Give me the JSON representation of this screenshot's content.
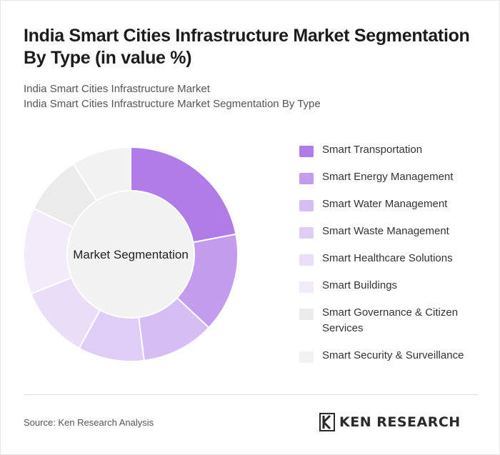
{
  "header": {
    "title": "India Smart Cities Infrastructure Market Segmentation By Type (in value %)",
    "subtitle_line1": "India Smart Cities Infrastructure Market",
    "subtitle_line2": "India Smart Cities Infrastructure Market Segmentation By Type"
  },
  "chart_data": {
    "type": "pie",
    "variant": "donut",
    "center_label": "Market Segmentation",
    "categories": [
      "Smart Transportation",
      "Smart Energy Management",
      "Smart Water Management",
      "Smart Waste Management",
      "Smart Healthcare Solutions",
      "Smart Buildings",
      "Smart Governance & Citizen Services",
      "Smart Security & Surveillance"
    ],
    "values": [
      22,
      15,
      11,
      10,
      11,
      13,
      9,
      9
    ],
    "colors": [
      "#b07ce8",
      "#c49cee",
      "#d6bdf3",
      "#e0cdf5",
      "#e9ddf8",
      "#f1ebfa",
      "#ebebeb",
      "#f2f2f2"
    ],
    "legend_position": "right"
  },
  "footer": {
    "source": "Source: Ken Research Analysis",
    "logo_text": "KEN RESEARCH",
    "logo_icon": "ken-research-logo-icon"
  }
}
